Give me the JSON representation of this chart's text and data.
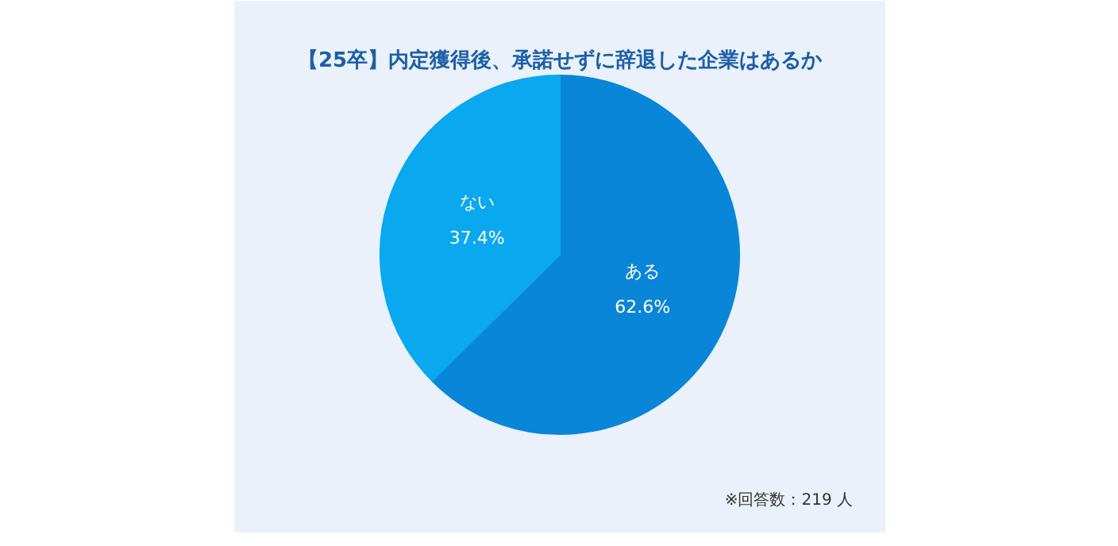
{
  "chart_data": {
    "type": "pie",
    "title": "【25卒】内定獲得後、承諾せずに辞退した企業はあるか",
    "categories": [
      "ある",
      "ない"
    ],
    "values": [
      62.6,
      37.4
    ],
    "colors": [
      "#0a86d8",
      "#0aa8ef"
    ],
    "value_labels": [
      "62.6%",
      "37.4%"
    ],
    "annotations": [
      "※回答数：219 人"
    ]
  }
}
